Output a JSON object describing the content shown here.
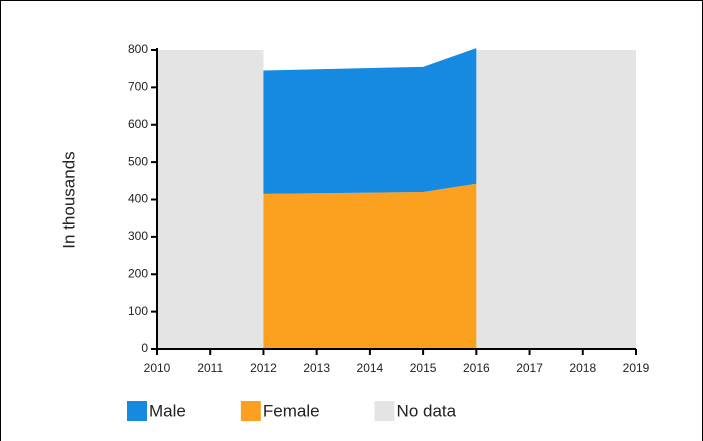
{
  "chart_data": {
    "type": "stacked_area",
    "y_label": "In thousands",
    "x": [
      2012,
      2015,
      2016
    ],
    "series": [
      {
        "name": "Female",
        "color": "#fba11f",
        "values": [
          415,
          420,
          442
        ]
      },
      {
        "name": "Male",
        "color": "#168ae0",
        "values": [
          330,
          335,
          363
        ]
      }
    ],
    "legend_order": [
      "Male",
      "Female"
    ],
    "no_data_label": "No data",
    "no_data_color": "#e4e4e4",
    "xlim": [
      2010,
      2019
    ],
    "xticks": [
      2010,
      2011,
      2012,
      2013,
      2014,
      2015,
      2016,
      2017,
      2018,
      2019
    ],
    "ylim": [
      0,
      800
    ],
    "yticks": [
      0,
      100,
      200,
      300,
      400,
      500,
      600,
      700,
      800
    ],
    "legend": "bottom-left"
  }
}
